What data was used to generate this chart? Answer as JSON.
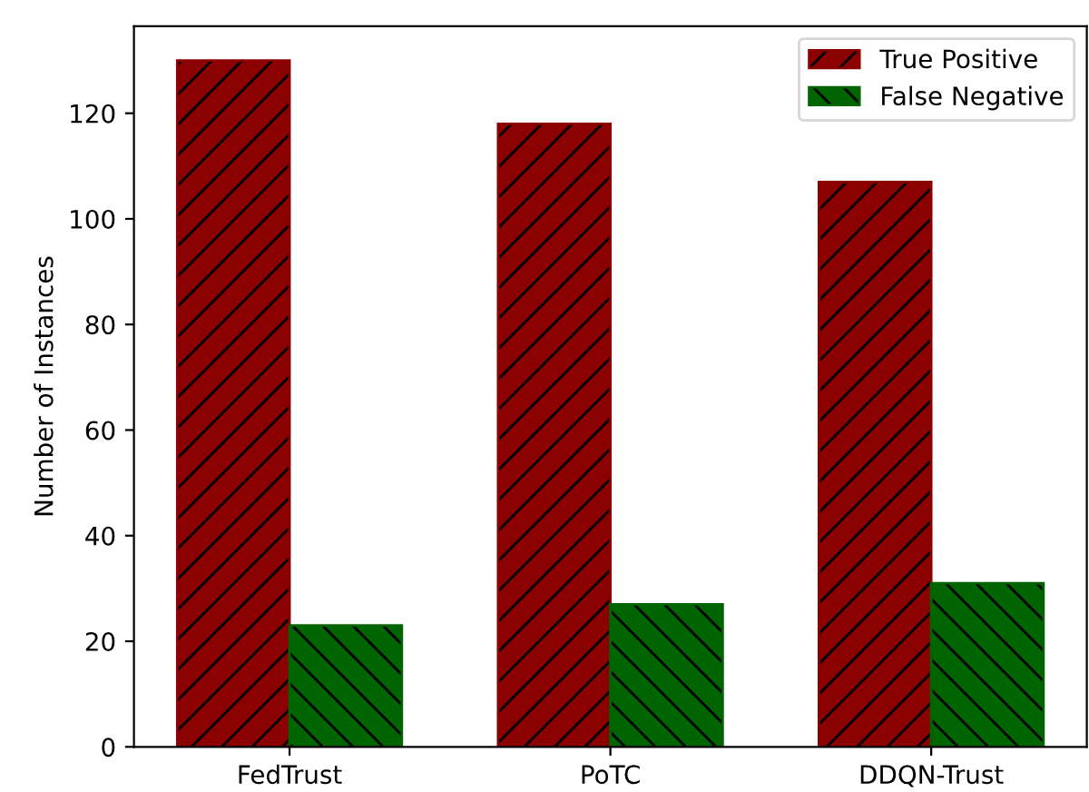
{
  "chart_data": {
    "type": "bar",
    "ylabel": "Number of Instances",
    "categories": [
      "FedTrust",
      "PoTC",
      "DDQN-Trust"
    ],
    "series": [
      {
        "name": "True Positive",
        "color": "#8b0000",
        "values": [
          130,
          118,
          107
        ]
      },
      {
        "name": "False Negative",
        "color": "#006400",
        "values": [
          23,
          27,
          31
        ]
      }
    ],
    "ylim": [
      0,
      136.5
    ],
    "yticks": [
      0,
      20,
      40,
      60,
      80,
      100,
      120
    ],
    "grid": false,
    "legend": "top right"
  }
}
